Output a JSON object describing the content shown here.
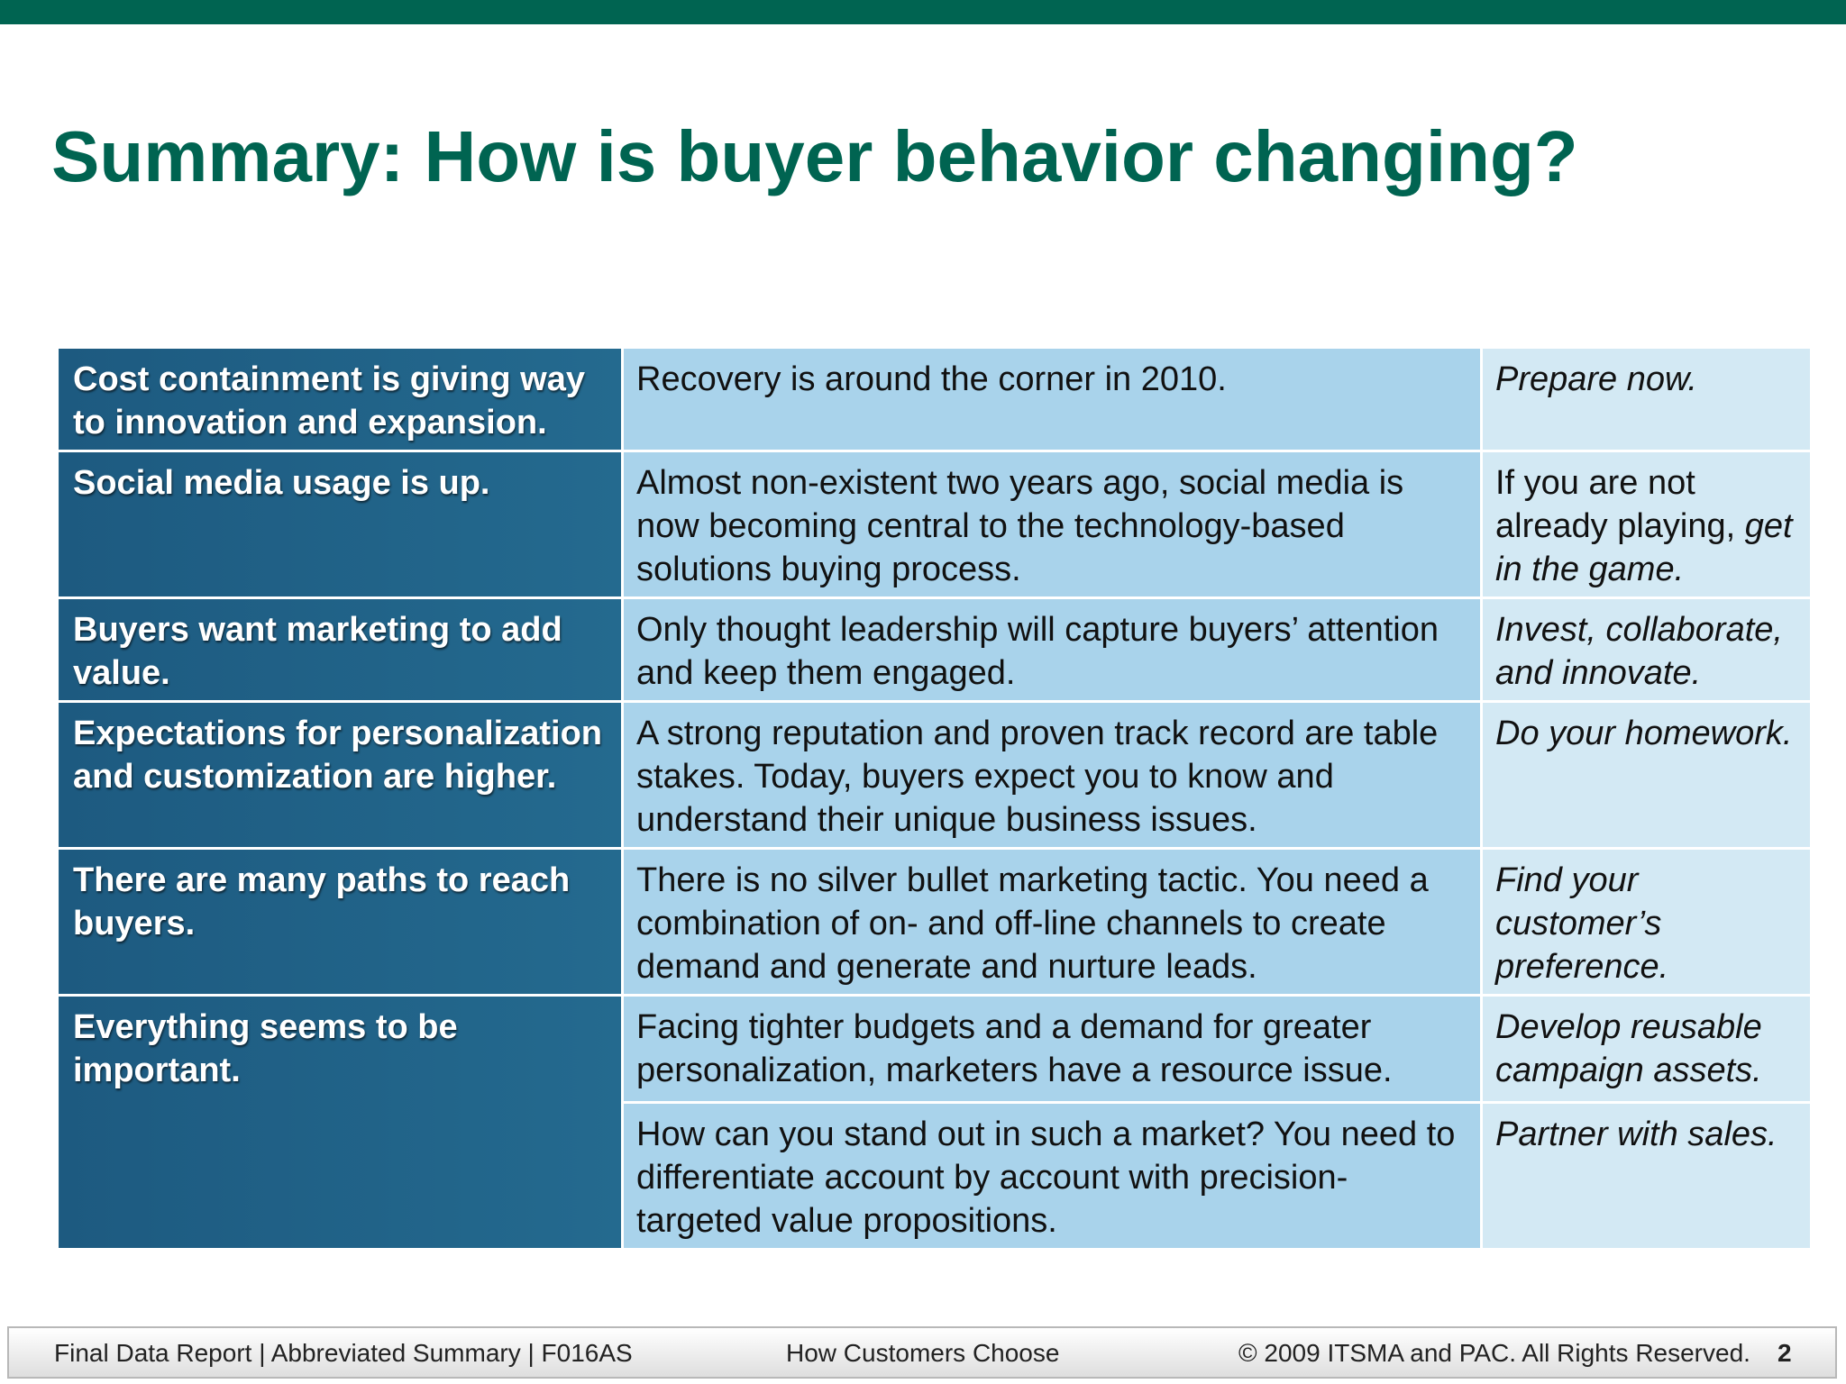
{
  "header": {
    "title": "Summary: How is buyer behavior changing?"
  },
  "table": {
    "rows": [
      {
        "finding": "Cost containment is giving way to innovation and expansion.",
        "items": [
          {
            "detail": "Recovery is around the corner in 2010.",
            "action": "Prepare now."
          }
        ]
      },
      {
        "finding": "Social media usage is up.",
        "items": [
          {
            "detail": "Almost non-existent two years ago, social media is now becoming central to the technology-based solutions buying process.",
            "action_lead": "If you are not already playing,",
            "action": "get in the game."
          }
        ]
      },
      {
        "finding": "Buyers want marketing to add value.",
        "items": [
          {
            "detail": "Only thought leadership will capture buyers’ attention and keep them engaged.",
            "action": "Invest, collaborate, and innovate."
          }
        ]
      },
      {
        "finding": "Expectations for personalization and customization are higher.",
        "items": [
          {
            "detail": "A strong reputation and proven track record are table stakes. Today, buyers expect you to know and understand their unique business issues.",
            "action": "Do your homework."
          }
        ]
      },
      {
        "finding": "There are many paths to reach buyers.",
        "items": [
          {
            "detail": "There is no silver bullet marketing tactic. You need a combination of on- and off-line channels to create demand and generate and nurture leads.",
            "action": "Find your customer’s preference."
          }
        ]
      },
      {
        "finding": "Everything seems to be important.",
        "items": [
          {
            "detail": "Facing tighter budgets and a demand for greater personalization, marketers have a resource issue.",
            "action": "Develop reusable campaign assets."
          },
          {
            "detail": "How can you stand out in such a market? You need to differentiate account by account with precision-targeted value propositions.",
            "action": "Partner with sales."
          }
        ]
      }
    ]
  },
  "footer": {
    "left": "Final Data Report | Abbreviated Summary | F016AS",
    "center": "How Customers Choose",
    "right": "© 2009 ITSMA and PAC. All Rights Reserved.",
    "page": "2"
  }
}
